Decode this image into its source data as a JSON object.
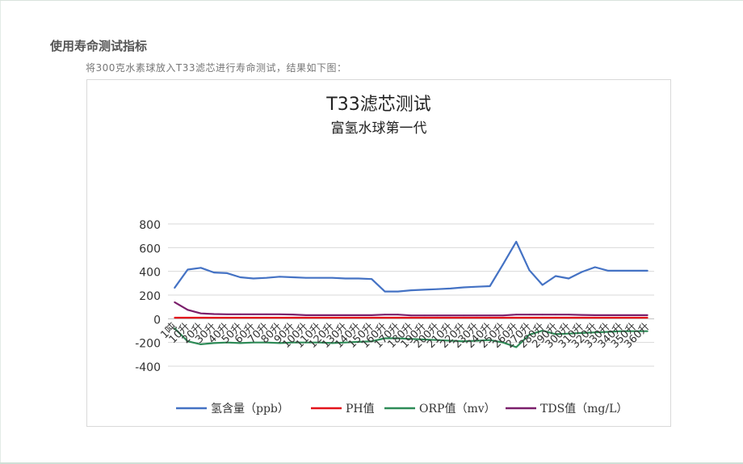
{
  "page": {
    "heading": "使用寿命测试指标",
    "description": "将300克水素球放入T33滤芯进行寿命测试，结果如下图："
  },
  "chart_data": {
    "type": "line",
    "title": "T33滤芯测试",
    "subtitle": "富氢水球第一代",
    "ylim": [
      -400,
      800
    ],
    "yticks": [
      800,
      600,
      400,
      200,
      0,
      -200,
      -400
    ],
    "grid": true,
    "legend_position": "bottom",
    "categories": [
      "1吨",
      "10升",
      "20升",
      "30升",
      "40升",
      "50升",
      "60升",
      "70升",
      "80升",
      "90升",
      "100升",
      "110升",
      "120升",
      "130升",
      "140升",
      "150升",
      "160升",
      "170升",
      "180升",
      "190升",
      "200升",
      "210升",
      "220升",
      "230升",
      "240升",
      "250升",
      "260升",
      "270升",
      "280升",
      "290升",
      "300升",
      "310升",
      "320升",
      "330升",
      "340升",
      "350升",
      "360升"
    ],
    "series": [
      {
        "name": "氢含量（ppb）",
        "color": "#4472c4",
        "values": [
          260,
          415,
          430,
          390,
          385,
          350,
          340,
          345,
          355,
          350,
          345,
          345,
          345,
          340,
          340,
          335,
          230,
          230,
          240,
          245,
          250,
          255,
          265,
          270,
          275,
          460,
          650,
          410,
          285,
          360,
          340,
          395,
          435,
          405,
          405,
          405,
          405
        ]
      },
      {
        "name": "PH值",
        "color": "#e3141b",
        "values": [
          9,
          9,
          9,
          9,
          9,
          9,
          9,
          9,
          9,
          9,
          9,
          9,
          9,
          9,
          9,
          9,
          9,
          9,
          9,
          9,
          9,
          9,
          9,
          9,
          9,
          9,
          9,
          9,
          9,
          9,
          9,
          9,
          9,
          9,
          9,
          9,
          9
        ]
      },
      {
        "name": "ORP值（mv）",
        "color": "#2e8b57",
        "values": [
          -80,
          -190,
          -215,
          -205,
          -200,
          -205,
          -200,
          -200,
          -205,
          -200,
          -200,
          -200,
          -205,
          -200,
          -195,
          -190,
          -165,
          -165,
          -170,
          -175,
          -180,
          -185,
          -190,
          -185,
          -180,
          -200,
          -240,
          -135,
          -100,
          -130,
          -125,
          -120,
          -115,
          -110,
          -105,
          -105,
          -105
        ]
      },
      {
        "name": "TDS值（mg/L）",
        "color": "#7b1f6b",
        "values": [
          140,
          75,
          45,
          40,
          38,
          38,
          38,
          38,
          38,
          36,
          30,
          30,
          30,
          30,
          30,
          30,
          35,
          35,
          28,
          28,
          28,
          28,
          28,
          28,
          28,
          28,
          35,
          35,
          35,
          35,
          35,
          32,
          30,
          30,
          30,
          30,
          30
        ]
      }
    ]
  }
}
